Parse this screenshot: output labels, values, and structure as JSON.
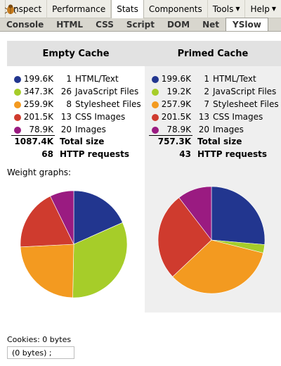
{
  "menu": {
    "items": [
      "Inspect",
      "Performance",
      "Stats",
      "Components",
      "Tools",
      "Help"
    ],
    "active_index": 2,
    "dropdown_items": [
      4,
      5
    ]
  },
  "tabs": {
    "items": [
      "Console",
      "HTML",
      "CSS",
      "Script",
      "DOM",
      "Net",
      "YSlow"
    ],
    "active_index": 6
  },
  "empty": {
    "title": "Empty Cache",
    "rows": [
      {
        "size": "199.6K",
        "count": "1",
        "label": "HTML/Text",
        "color": "#22368f"
      },
      {
        "size": "347.3K",
        "count": "26",
        "label": "JavaScript Files",
        "color": "#a6cd29"
      },
      {
        "size": "259.9K",
        "count": "8",
        "label": "Stylesheet Files",
        "color": "#f39a20"
      },
      {
        "size": "201.5K",
        "count": "13",
        "label": "CSS Images",
        "color": "#cf3b2e"
      },
      {
        "size": "78.9K",
        "count": "20",
        "label": "Images",
        "color": "#9a1b81"
      }
    ],
    "total_size": "1087.4K",
    "total_label": "Total size",
    "requests": "68",
    "requests_label": "HTTP requests"
  },
  "primed": {
    "title": "Primed Cache",
    "rows": [
      {
        "size": "199.6K",
        "count": "1",
        "label": "HTML/Text",
        "color": "#22368f"
      },
      {
        "size": "19.2K",
        "count": "2",
        "label": "JavaScript Files",
        "color": "#a6cd29"
      },
      {
        "size": "257.9K",
        "count": "7",
        "label": "Stylesheet Files",
        "color": "#f39a20"
      },
      {
        "size": "201.5K",
        "count": "13",
        "label": "CSS Images",
        "color": "#cf3b2e"
      },
      {
        "size": "78.9K",
        "count": "20",
        "label": "Images",
        "color": "#9a1b81"
      }
    ],
    "total_size": "757.3K",
    "total_label": "Total size",
    "requests": "43",
    "requests_label": "HTTP requests"
  },
  "weight_title": "Weight graphs:",
  "chart_data": [
    {
      "type": "pie",
      "title": "",
      "categories": [
        "HTML/Text",
        "JavaScript Files",
        "Stylesheet Files",
        "CSS Images",
        "Images"
      ],
      "values": [
        199.6,
        347.3,
        259.9,
        201.5,
        78.9
      ],
      "colors": [
        "#22368f",
        "#a6cd29",
        "#f39a20",
        "#cf3b2e",
        "#9a1b81"
      ]
    },
    {
      "type": "pie",
      "title": "",
      "categories": [
        "HTML/Text",
        "JavaScript Files",
        "Stylesheet Files",
        "CSS Images",
        "Images"
      ],
      "values": [
        199.6,
        19.2,
        257.9,
        201.5,
        78.9
      ],
      "colors": [
        "#22368f",
        "#a6cd29",
        "#f39a20",
        "#cf3b2e",
        "#9a1b81"
      ]
    }
  ],
  "cookies": {
    "label": "Cookies: 0 bytes",
    "value": "(0 bytes) ;"
  }
}
